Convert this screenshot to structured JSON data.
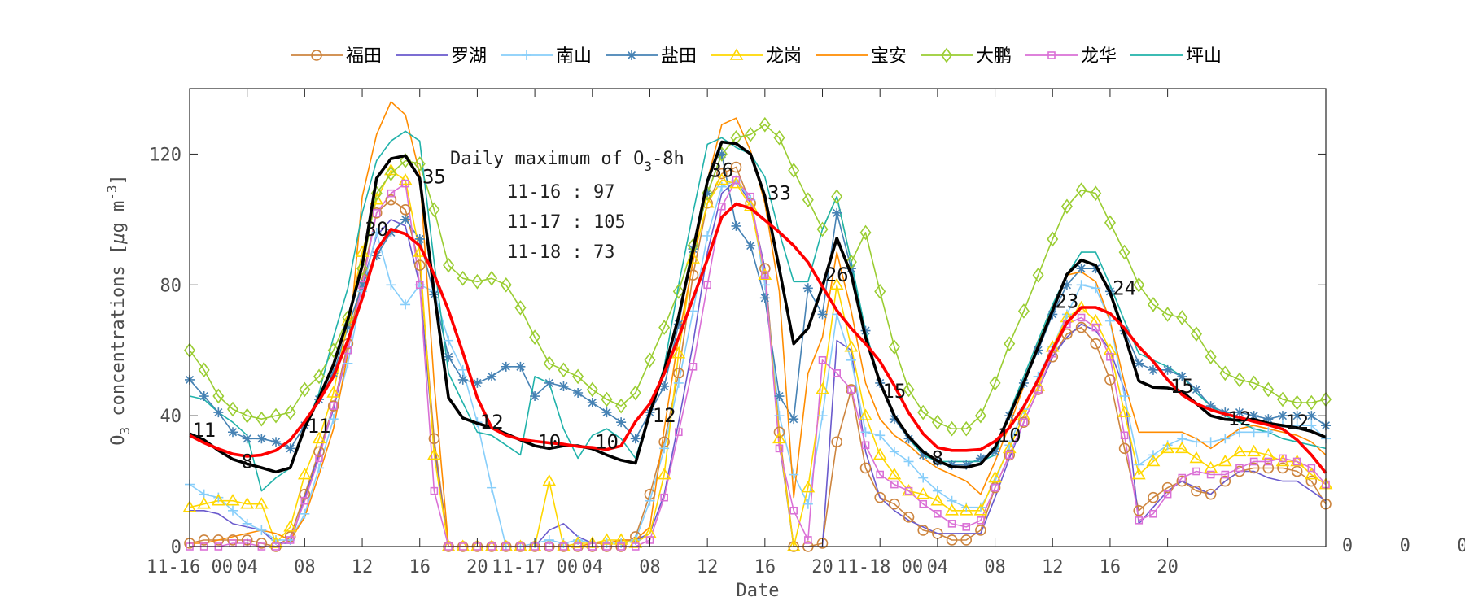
{
  "chart_data": {
    "type": "line",
    "title": "",
    "xlabel": "Date",
    "ylabel": {
      "main": "O",
      "sub": "3",
      "rest": " concentrations [",
      "mu": "μ",
      "unit": "g m",
      "sup": "-3",
      "close": "]"
    },
    "ylim": [
      0,
      140
    ],
    "yticks": [
      0,
      40,
      80,
      120
    ],
    "grid": false,
    "legend_position": "top",
    "x": [
      "11-16 00",
      "11-16 01",
      "11-16 02",
      "11-16 03",
      "11-16 04",
      "11-16 05",
      "11-16 06",
      "11-16 07",
      "11-16 08",
      "11-16 09",
      "11-16 10",
      "11-16 11",
      "11-16 12",
      "11-16 13",
      "11-16 14",
      "11-16 15",
      "11-16 16",
      "11-16 17",
      "11-16 18",
      "11-16 19",
      "11-16 20",
      "11-16 21",
      "11-16 22",
      "11-16 23",
      "11-17 00",
      "11-17 01",
      "11-17 02",
      "11-17 03",
      "11-17 04",
      "11-17 05",
      "11-17 06",
      "11-17 07",
      "11-17 08",
      "11-17 09",
      "11-17 10",
      "11-17 11",
      "11-17 12",
      "11-17 13",
      "11-17 14",
      "11-17 15",
      "11-17 16",
      "11-17 17",
      "11-17 18",
      "11-17 19",
      "11-17 20",
      "11-17 21",
      "11-17 22",
      "11-17 23",
      "11-18 00",
      "11-18 01",
      "11-18 02",
      "11-18 03",
      "11-18 04",
      "11-18 05",
      "11-18 06",
      "11-18 07",
      "11-18 08",
      "11-18 09",
      "11-18 10",
      "11-18 11",
      "11-18 12",
      "11-18 13",
      "11-18 14",
      "11-18 15",
      "11-18 16",
      "11-18 17",
      "11-18 18",
      "11-18 19",
      "11-18 20",
      "11-18 21",
      "11-18 22",
      "11-18 23",
      "11-19 00",
      "11-19 01",
      "11-19 02",
      "11-19 03",
      "11-19 04",
      "11-19 05",
      "11-19 06",
      "11-19 07"
    ],
    "xticks": [
      {
        "label": "11-16 00",
        "at": "11-16 00"
      },
      {
        "label": "04",
        "at": "11-16 04"
      },
      {
        "label": "08",
        "at": "11-16 08"
      },
      {
        "label": "12",
        "at": "11-16 12"
      },
      {
        "label": "16",
        "at": "11-16 16"
      },
      {
        "label": "20",
        "at": "11-16 20"
      },
      {
        "label": "11-17 00",
        "at": "11-17 00"
      },
      {
        "label": "04",
        "at": "11-17 04"
      },
      {
        "label": "08",
        "at": "11-17 08"
      },
      {
        "label": "12",
        "at": "11-17 12"
      },
      {
        "label": "16",
        "at": "11-17 16"
      },
      {
        "label": "20",
        "at": "11-17 20"
      },
      {
        "label": "11-18 00",
        "at": "11-18 00"
      },
      {
        "label": "04",
        "at": "11-18 04"
      },
      {
        "label": "08",
        "at": "11-18 08"
      },
      {
        "label": "12",
        "at": "11-18 12"
      },
      {
        "label": "16",
        "at": "11-18 16"
      },
      {
        "label": "20",
        "at": "11-18 20"
      },
      {
        "label": "0"
      },
      {
        "label": "0"
      },
      {
        "label": "0"
      }
    ],
    "series": [
      {
        "name": "福田",
        "color": "#CD853F",
        "marker": "circle",
        "values": [
          1,
          2,
          2,
          2,
          2,
          1,
          0,
          3,
          16,
          29,
          43,
          62,
          82,
          102,
          106,
          103,
          86,
          33,
          0,
          0,
          0,
          0,
          0,
          0,
          0,
          0,
          0,
          0,
          0,
          0,
          0,
          3,
          16,
          32,
          53,
          83,
          105,
          114,
          116,
          105,
          85,
          35,
          0,
          0,
          1,
          32,
          48,
          24,
          15,
          13,
          9,
          5,
          4,
          2,
          2,
          5,
          18,
          28,
          38,
          48,
          58,
          65,
          67,
          62,
          51,
          30,
          11,
          15,
          18,
          20,
          17,
          16,
          20,
          23,
          24,
          24,
          24,
          23,
          20,
          13
        ]
      },
      {
        "name": "罗湖",
        "color": "#6A5ACD",
        "marker": "none",
        "values": [
          11,
          11,
          10,
          7,
          6,
          5,
          1,
          1,
          15,
          28,
          42,
          60,
          80,
          95,
          100,
          98,
          80,
          30,
          0,
          0,
          0,
          0,
          0,
          0,
          0,
          5,
          7,
          3,
          1,
          1,
          2,
          2,
          4,
          16,
          38,
          62,
          90,
          108,
          112,
          105,
          85,
          32,
          0,
          0,
          0,
          63,
          60,
          29,
          15,
          11,
          8,
          6,
          4,
          4,
          4,
          4,
          15,
          27,
          38,
          48,
          58,
          64,
          68,
          66,
          60,
          48,
          7,
          12,
          17,
          20,
          18,
          16,
          20,
          23,
          23,
          21,
          20,
          20,
          17,
          14
        ]
      },
      {
        "name": "南山",
        "color": "#87CEFA",
        "marker": "plus",
        "values": [
          19,
          16,
          15,
          11,
          7,
          5,
          2,
          2,
          10,
          24,
          39,
          56,
          78,
          96,
          80,
          74,
          80,
          78,
          63,
          54,
          38,
          18,
          0,
          0,
          1,
          2,
          1,
          2,
          1,
          1,
          1,
          2,
          14,
          30,
          50,
          72,
          95,
          110,
          112,
          106,
          80,
          40,
          22,
          13,
          40,
          71,
          57,
          35,
          34,
          29,
          26,
          21,
          17,
          14,
          12,
          12,
          20,
          31,
          42,
          52,
          61,
          71,
          80,
          79,
          69,
          46,
          25,
          28,
          31,
          33,
          32,
          32,
          33,
          35,
          35,
          35,
          37,
          37,
          37,
          33
        ]
      },
      {
        "name": "盐田",
        "color": "#4682B4",
        "marker": "asterisk",
        "values": [
          51,
          46,
          41,
          35,
          33,
          33,
          32,
          30,
          37,
          45,
          53,
          67,
          80,
          89,
          96,
          100,
          94,
          77,
          58,
          51,
          50,
          52,
          55,
          55,
          46,
          50,
          49,
          47,
          44,
          41,
          38,
          33,
          41,
          49,
          68,
          91,
          108,
          120,
          98,
          92,
          76,
          46,
          39,
          79,
          71,
          102,
          85,
          66,
          50,
          39,
          33,
          28,
          26,
          25,
          25,
          27,
          29,
          40,
          50,
          60,
          71,
          80,
          85,
          85,
          78,
          66,
          56,
          54,
          54,
          52,
          48,
          43,
          41,
          41,
          40,
          39,
          40,
          40,
          40,
          37
        ]
      },
      {
        "name": "龙岗",
        "color": "#FFD700",
        "marker": "triangle",
        "values": [
          12,
          13,
          14,
          14,
          13,
          13,
          1,
          6,
          22,
          33,
          47,
          69,
          90,
          106,
          115,
          112,
          90,
          28,
          0,
          0,
          0,
          0,
          0,
          0,
          0,
          20,
          0,
          1,
          1,
          2,
          2,
          1,
          4,
          22,
          59,
          88,
          105,
          112,
          111,
          104,
          83,
          33,
          0,
          18,
          48,
          80,
          61,
          40,
          28,
          22,
          17,
          16,
          14,
          11,
          11,
          11,
          21,
          30,
          40,
          49,
          61,
          70,
          73,
          69,
          60,
          41,
          22,
          26,
          30,
          30,
          27,
          24,
          26,
          29,
          29,
          28,
          26,
          26,
          22,
          19
        ]
      },
      {
        "name": "宝安",
        "color": "#FF8C00",
        "marker": "none",
        "values": [
          1,
          1,
          2,
          3,
          4,
          5,
          4,
          2,
          9,
          22,
          36,
          59,
          107,
          126,
          136,
          132,
          114,
          50,
          0,
          0,
          0,
          0,
          0,
          0,
          0,
          0,
          0,
          0,
          1,
          1,
          2,
          2,
          6,
          36,
          64,
          87,
          112,
          129,
          131,
          121,
          105,
          78,
          15,
          53,
          64,
          90,
          72,
          50,
          39,
          34,
          31,
          27,
          24,
          22,
          20,
          16,
          26,
          37,
          49,
          62,
          73,
          83,
          84,
          81,
          69,
          50,
          35,
          35,
          35,
          35,
          33,
          30,
          33,
          36,
          37,
          36,
          35,
          34,
          32,
          28
        ]
      },
      {
        "name": "大鹏",
        "color": "#9ACD32",
        "marker": "diamond",
        "values": [
          60,
          54,
          46,
          42,
          40,
          39,
          40,
          41,
          48,
          52,
          60,
          70,
          85,
          108,
          114,
          118,
          117,
          103,
          86,
          82,
          81,
          82,
          80,
          73,
          64,
          56,
          54,
          52,
          48,
          45,
          43,
          47,
          57,
          67,
          78,
          92,
          108,
          120,
          125,
          126,
          129,
          125,
          115,
          106,
          97,
          107,
          87,
          96,
          78,
          61,
          48,
          41,
          38,
          36,
          36,
          40,
          50,
          62,
          72,
          83,
          94,
          104,
          109,
          108,
          99,
          90,
          80,
          74,
          71,
          70,
          65,
          58,
          53,
          51,
          50,
          48,
          45,
          44,
          44,
          45
        ]
      },
      {
        "name": "龙华",
        "color": "#DA70D6",
        "marker": "square",
        "values": [
          0,
          0,
          0,
          1,
          1,
          0,
          0,
          2,
          14,
          27,
          43,
          60,
          80,
          102,
          108,
          111,
          80,
          17,
          0,
          0,
          0,
          0,
          0,
          0,
          0,
          0,
          0,
          0,
          0,
          0,
          0,
          0,
          2,
          15,
          35,
          55,
          80,
          104,
          112,
          107,
          83,
          30,
          11,
          2,
          57,
          53,
          48,
          31,
          22,
          19,
          17,
          13,
          10,
          7,
          6,
          8,
          18,
          28,
          38,
          48,
          59,
          68,
          70,
          67,
          58,
          34,
          8,
          10,
          16,
          21,
          23,
          22,
          22,
          24,
          26,
          26,
          27,
          26,
          24,
          19
        ]
      },
      {
        "name": "坪山",
        "color": "#20B2AA",
        "marker": "none",
        "values": [
          46,
          45,
          41,
          38,
          34,
          17,
          21,
          24,
          36,
          47,
          64,
          79,
          102,
          118,
          124,
          127,
          124,
          87,
          53,
          44,
          35,
          34,
          31,
          28,
          52,
          50,
          36,
          27,
          34,
          36,
          33,
          27,
          41,
          55,
          80,
          102,
          123,
          125,
          122,
          120,
          113,
          96,
          81,
          81,
          97,
          107,
          87,
          66,
          50,
          40,
          33,
          28,
          26,
          26,
          26,
          26,
          28,
          41,
          52,
          63,
          74,
          83,
          90,
          90,
          80,
          69,
          59,
          57,
          55,
          52,
          47,
          43,
          40,
          38,
          36,
          35,
          33,
          32,
          31,
          30
        ]
      },
      {
        "color": "#FF0000",
        "marker": "none",
        "thick": true,
        "values": [
          34,
          31.7,
          29.9,
          28.3,
          27.6,
          28,
          29.4,
          32.6,
          38.2,
          44.6,
          52,
          63,
          75.9,
          90.6,
          97,
          95.6,
          92,
          83.2,
          72.2,
          59.3,
          45.5,
          36.3,
          34,
          32.8,
          32.2,
          31.7,
          31.3,
          30.6,
          30.3,
          29.7,
          30.8,
          38.2,
          43.7,
          52.9,
          63.9,
          75.9,
          87.8,
          100.7,
          104.8,
          103.4,
          99.8,
          96.1,
          92,
          86.9,
          79.5,
          72.2,
          66.7,
          62,
          56.6,
          49.2,
          40.9,
          34.5,
          30.3,
          29.4,
          29.4,
          29.7,
          32.2,
          36.3,
          42.8,
          51,
          60.2,
          68.5,
          73.1,
          73.1,
          71.3,
          66.7,
          61.1,
          56.6,
          51,
          46.4,
          43.7,
          41.8,
          40.5,
          39.5,
          38.2,
          37.2,
          35.9,
          32.6,
          28,
          22.5
        ]
      },
      {
        "color": "#000000",
        "marker": "none",
        "thick": true,
        "values": [
          34.5,
          32.6,
          29.4,
          26.7,
          25.3,
          24.1,
          22.8,
          24.1,
          36.3,
          45.5,
          55.6,
          69.4,
          86,
          112.6,
          118.6,
          119.5,
          112.6,
          77.7,
          45.5,
          39.3,
          37.7,
          36.3,
          34.5,
          32.6,
          30.8,
          30,
          30.8,
          30.8,
          29.9,
          28,
          26.4,
          25.5,
          41,
          53.8,
          70.3,
          90.6,
          111.7,
          123.7,
          123.2,
          120,
          107.1,
          85,
          62,
          66.7,
          79.5,
          94.3,
          83.2,
          63.9,
          50.1,
          40,
          33.6,
          29,
          26.2,
          24.4,
          24.2,
          25.3,
          30.3,
          40,
          50.1,
          61.1,
          72.2,
          83.2,
          87.6,
          86,
          77.7,
          64.8,
          50.6,
          48.7,
          48.5,
          47.4,
          43.7,
          40,
          38.9,
          38.6,
          38.9,
          37.7,
          37,
          36.3,
          35.2,
          33.4
        ]
      }
    ],
    "point_labels": [
      {
        "text": "11",
        "at": "11-16 01",
        "y": 35.6
      },
      {
        "text": "8",
        "at": "11-16 04",
        "y": 26
      },
      {
        "text": "11",
        "at": "11-16 09",
        "y": 36.8
      },
      {
        "text": "30",
        "at": "11-16 13",
        "y": 97
      },
      {
        "text": "35",
        "at": "11-16 17",
        "y": 113
      },
      {
        "text": "12",
        "at": "11-16 21",
        "y": 38
      },
      {
        "text": "10",
        "at": "11-17 01",
        "y": 32
      },
      {
        "text": "10",
        "at": "11-17 05",
        "y": 32
      },
      {
        "text": "12",
        "at": "11-17 09",
        "y": 40
      },
      {
        "text": "36",
        "at": "11-17 13",
        "y": 115
      },
      {
        "text": "33",
        "at": "11-17 17",
        "y": 108
      },
      {
        "text": "26",
        "at": "11-17 21",
        "y": 83
      },
      {
        "text": "15",
        "at": "11-18 01",
        "y": 47.5
      },
      {
        "text": "8",
        "at": "11-18 04",
        "y": 27
      },
      {
        "text": "10",
        "at": "11-18 09",
        "y": 34
      },
      {
        "text": "23",
        "at": "11-18 13",
        "y": 75
      },
      {
        "text": "24",
        "at": "11-18 17",
        "y": 79
      },
      {
        "text": "15",
        "at": "11-18 21",
        "y": 49
      },
      {
        "text": "12",
        "at": "11-19 01",
        "y": 39
      },
      {
        "text": "12",
        "at": "11-19 05",
        "y": 38
      }
    ],
    "annotation": {
      "title_main": "Daily maximum of O",
      "title_sub": "3",
      "title_rest": "-8h",
      "lines": [
        "11-16 : 97",
        "11-17 : 105",
        "11-18 : 73"
      ]
    }
  }
}
